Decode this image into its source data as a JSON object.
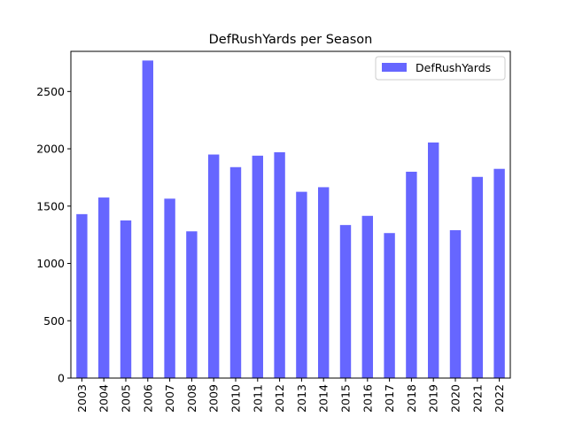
{
  "chart_data": {
    "type": "bar",
    "title": "DefRushYards per Season",
    "xlabel": "",
    "ylabel": "",
    "categories": [
      "2003",
      "2004",
      "2005",
      "2006",
      "2007",
      "2008",
      "2009",
      "2010",
      "2011",
      "2012",
      "2013",
      "2014",
      "2015",
      "2016",
      "2017",
      "2018",
      "2019",
      "2020",
      "2021",
      "2022"
    ],
    "series": [
      {
        "name": "DefRushYards",
        "color": "#6666ff",
        "values": [
          1430,
          1575,
          1375,
          2770,
          1565,
          1280,
          1950,
          1840,
          1940,
          1970,
          1625,
          1665,
          1335,
          1415,
          1265,
          1800,
          2055,
          1290,
          1755,
          1825
        ]
      }
    ],
    "ylim": [
      0,
      2850
    ],
    "yticks": [
      0,
      500,
      1000,
      1500,
      2000,
      2500
    ],
    "grid": false,
    "legend_position": "top-right"
  }
}
